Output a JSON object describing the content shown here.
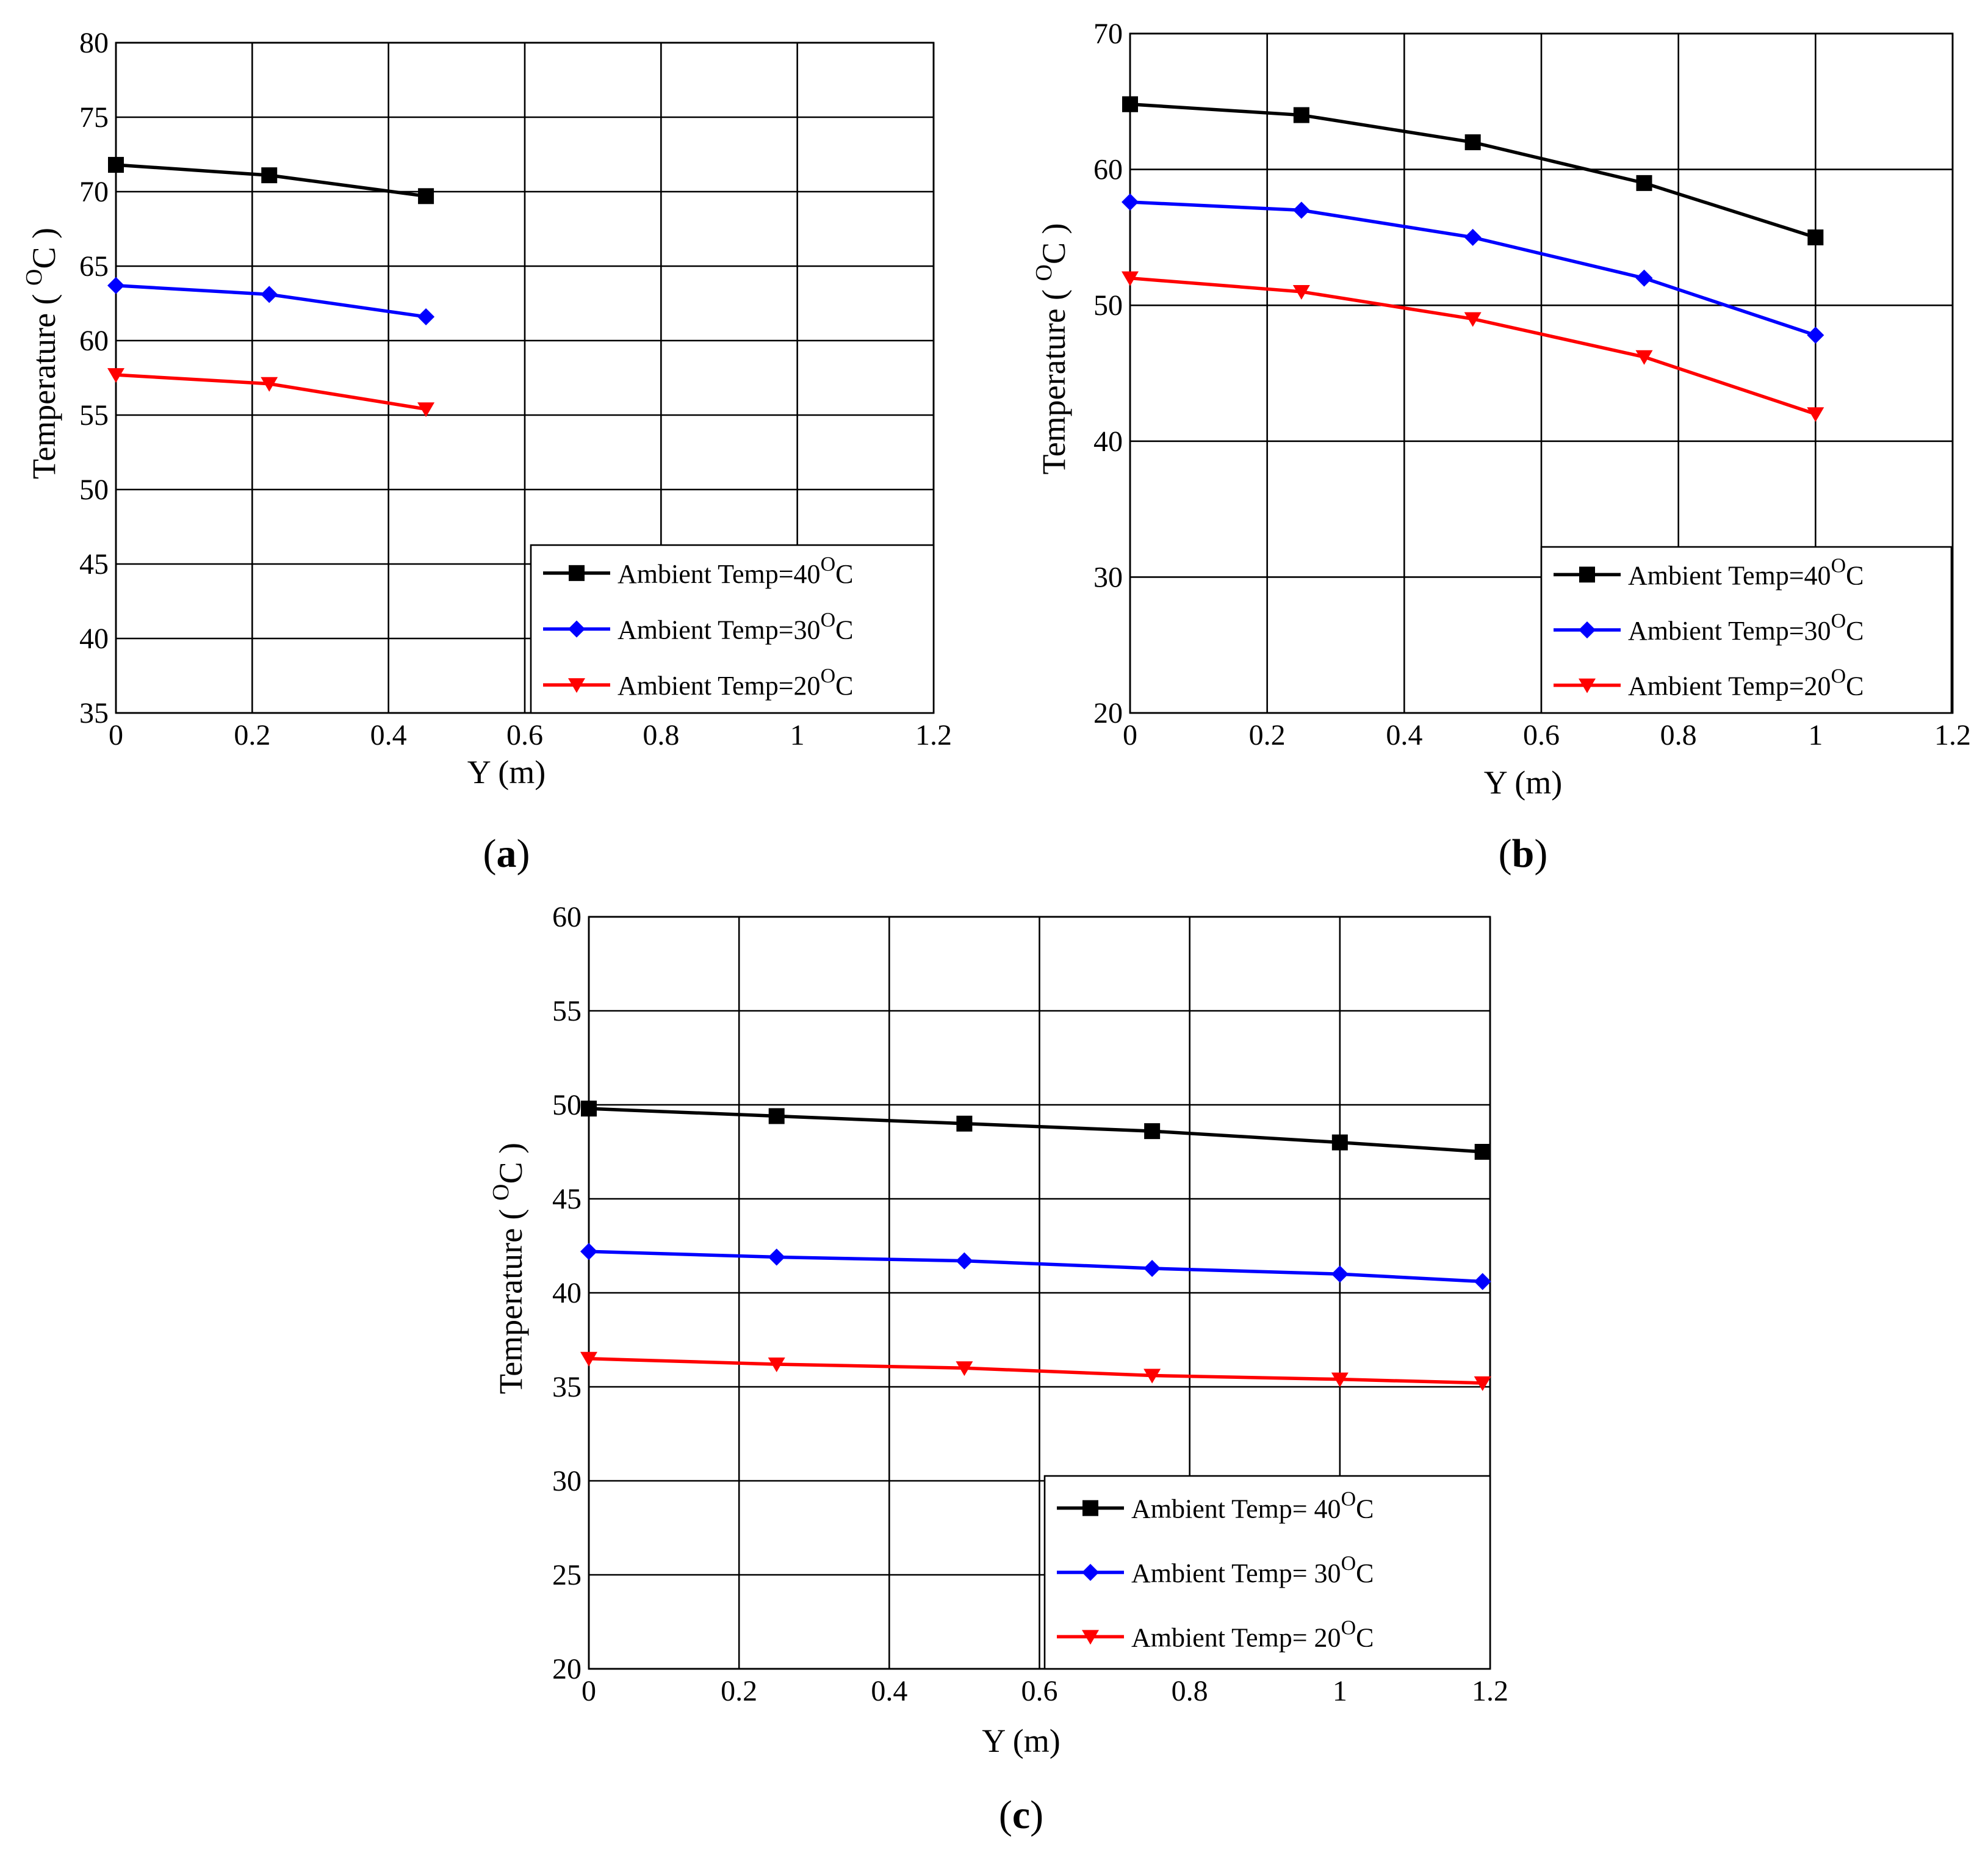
{
  "chart_data": [
    {
      "type": "line",
      "panel_label": "a",
      "xlabel": "Y (m)",
      "ylabel": "Temperature ( °C )",
      "ylabel_parts": [
        "Temperature (",
        "O",
        "C )"
      ],
      "xlim": [
        0,
        1.2
      ],
      "ylim": [
        35,
        80
      ],
      "xticks": [
        0,
        0.2,
        0.4,
        0.6,
        0.8,
        1,
        1.2
      ],
      "xtick_labels": [
        "0",
        "0.2",
        "0.4",
        "0.6",
        "0.8",
        "1",
        "1.2"
      ],
      "yticks": [
        35,
        40,
        45,
        50,
        55,
        60,
        65,
        70,
        75,
        80
      ],
      "ytick_labels": [
        "35",
        "40",
        "45",
        "50",
        "55",
        "60",
        "65",
        "70",
        "75",
        "80"
      ],
      "grid": true,
      "legend_position": "bottom-right",
      "series": [
        {
          "name": "Ambient Temp=40OC",
          "legend_parts": [
            "Ambient Temp=40",
            "O",
            "C"
          ],
          "color": "#000000",
          "marker": "square",
          "x": [
            0,
            0.225,
            0.455
          ],
          "y": [
            71.8,
            71.1,
            69.7
          ]
        },
        {
          "name": "Ambient Temp=30OC",
          "legend_parts": [
            "Ambient Temp=30",
            "O",
            "C"
          ],
          "color": "#0000ff",
          "marker": "diamond",
          "x": [
            0,
            0.225,
            0.455
          ],
          "y": [
            63.7,
            63.1,
            61.6
          ]
        },
        {
          "name": "Ambient Temp=20OC",
          "legend_parts": [
            "Ambient Temp=20",
            "O",
            "C"
          ],
          "color": "#ff0000",
          "marker": "triangle-down",
          "x": [
            0,
            0.225,
            0.455
          ],
          "y": [
            57.7,
            57.1,
            55.4
          ]
        }
      ]
    },
    {
      "type": "line",
      "panel_label": "b",
      "xlabel": "Y (m)",
      "ylabel": "Temperature ( °C )",
      "ylabel_parts": [
        "Temperature (",
        "O",
        "C )"
      ],
      "xlim": [
        0,
        1.2
      ],
      "ylim": [
        20,
        70
      ],
      "xticks": [
        0,
        0.2,
        0.4,
        0.6,
        0.8,
        1,
        1.2
      ],
      "xtick_labels": [
        "0",
        "0.2",
        "0.4",
        "0.6",
        "0.8",
        "1",
        "1.2"
      ],
      "yticks": [
        20,
        30,
        40,
        50,
        60,
        70
      ],
      "ytick_labels": [
        "20",
        "30",
        "40",
        "50",
        "60",
        "70"
      ],
      "grid": true,
      "legend_position": "bottom-right",
      "series": [
        {
          "name": "Ambient Temp=40OC",
          "legend_parts": [
            "Ambient Temp=40",
            "O",
            "C"
          ],
          "color": "#000000",
          "marker": "square",
          "x": [
            0,
            0.25,
            0.5,
            0.75,
            1.0
          ],
          "y": [
            64.8,
            64.0,
            62.0,
            59.0,
            55.0
          ]
        },
        {
          "name": "Ambient Temp=30OC",
          "legend_parts": [
            "Ambient Temp=30",
            "O",
            "C"
          ],
          "color": "#0000ff",
          "marker": "diamond",
          "x": [
            0,
            0.25,
            0.5,
            0.75,
            1.0
          ],
          "y": [
            57.6,
            57.0,
            55.0,
            52.0,
            47.8
          ]
        },
        {
          "name": "Ambient Temp=20OC",
          "legend_parts": [
            "Ambient Temp=20",
            "O",
            "C"
          ],
          "color": "#ff0000",
          "marker": "triangle-down",
          "x": [
            0,
            0.25,
            0.5,
            0.75,
            1.0
          ],
          "y": [
            52.0,
            51.0,
            49.0,
            46.2,
            42.0
          ]
        }
      ]
    },
    {
      "type": "line",
      "panel_label": "c",
      "xlabel": "Y (m)",
      "ylabel": "Temperature ( °C )",
      "ylabel_parts": [
        "Temperature (",
        "O",
        "C )"
      ],
      "xlim": [
        0,
        1.2
      ],
      "ylim": [
        20,
        60
      ],
      "xticks": [
        0,
        0.2,
        0.4,
        0.6,
        0.8,
        1,
        1.2
      ],
      "xtick_labels": [
        "0",
        "0.2",
        "0.4",
        "0.6",
        "0.8",
        "1",
        "1.2"
      ],
      "yticks": [
        20,
        25,
        30,
        35,
        40,
        45,
        50,
        55,
        60
      ],
      "ytick_labels": [
        "20",
        "25",
        "30",
        "35",
        "40",
        "45",
        "50",
        "55",
        "60"
      ],
      "grid": true,
      "legend_position": "bottom-right",
      "series": [
        {
          "name": "Ambient Temp= 40OC",
          "legend_parts": [
            "Ambient Temp= 40",
            "O",
            "C"
          ],
          "color": "#000000",
          "marker": "square",
          "x": [
            0,
            0.25,
            0.5,
            0.75,
            1.0,
            1.19
          ],
          "y": [
            49.8,
            49.4,
            49.0,
            48.6,
            48.0,
            47.5
          ]
        },
        {
          "name": "Ambient Temp= 30OC",
          "legend_parts": [
            "Ambient Temp= 30",
            "O",
            "C"
          ],
          "color": "#0000ff",
          "marker": "diamond",
          "x": [
            0,
            0.25,
            0.5,
            0.75,
            1.0,
            1.19
          ],
          "y": [
            42.2,
            41.9,
            41.7,
            41.3,
            41.0,
            40.6
          ]
        },
        {
          "name": "Ambient Temp= 20OC",
          "legend_parts": [
            "Ambient Temp= 20",
            "O",
            "C"
          ],
          "color": "#ff0000",
          "marker": "triangle-down",
          "x": [
            0,
            0.25,
            0.5,
            0.75,
            1.0,
            1.19
          ],
          "y": [
            36.5,
            36.2,
            36.0,
            35.6,
            35.4,
            35.2
          ]
        }
      ]
    }
  ]
}
